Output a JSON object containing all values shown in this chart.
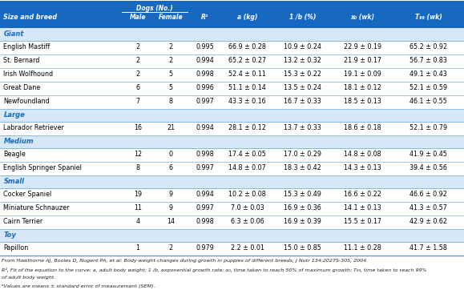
{
  "header_bg": "#1769C0",
  "category_bg": "#D6E8F7",
  "white_bg": "#FFFFFF",
  "border_color": "#5B9BD5",
  "header_text": "#FFFFFF",
  "category_text": "#1769C0",
  "data_text": "#000000",
  "footnote_text": "#333333",
  "col_labels_row1": [
    "",
    "Dogs (No.)",
    "",
    "",
    "",
    "",
    "",
    ""
  ],
  "col_labels_row2": [
    "Size and breed",
    "Male",
    "Female",
    "R²",
    "a (kg)",
    "1 /b (%)",
    "x₀ (wk)",
    "T₉₉ (wk)"
  ],
  "rows": [
    {
      "type": "category",
      "name": "Giant"
    },
    {
      "type": "data",
      "name": "English Mastiff",
      "male": "2",
      "female": "2",
      "r2": "0.995",
      "a": "66.9 ± 0.28",
      "lb": "10.9 ± 0.24",
      "x0": "22.9 ± 0.19",
      "t99": "65.2 ± 0.92"
    },
    {
      "type": "data",
      "name": "St. Bernard",
      "male": "2",
      "female": "2",
      "r2": "0.994",
      "a": "65.2 ± 0.27",
      "lb": "13.2 ± 0.32",
      "x0": "21.9 ± 0.17",
      "t99": "56.7 ± 0.83"
    },
    {
      "type": "data",
      "name": "Irish Wolfhound",
      "male": "2",
      "female": "5",
      "r2": "0.998",
      "a": "52.4 ± 0.11",
      "lb": "15.3 ± 0.22",
      "x0": "19.1 ± 0.09",
      "t99": "49.1 ± 0.43"
    },
    {
      "type": "data",
      "name": "Great Dane",
      "male": "6",
      "female": "5",
      "r2": "0.996",
      "a": "51.1 ± 0.14",
      "lb": "13.5 ± 0.24",
      "x0": "18.1 ± 0.12",
      "t99": "52.1 ± 0.59"
    },
    {
      "type": "data",
      "name": "Newfoundland",
      "male": "7",
      "female": "8",
      "r2": "0.997",
      "a": "43.3 ± 0.16",
      "lb": "16.7 ± 0.33",
      "x0": "18.5 ± 0.13",
      "t99": "46.1 ± 0.55"
    },
    {
      "type": "category",
      "name": "Large"
    },
    {
      "type": "data",
      "name": "Labrador Retriever",
      "male": "16",
      "female": "21",
      "r2": "0.994",
      "a": "28.1 ± 0.12",
      "lb": "13.7 ± 0.33",
      "x0": "18.6 ± 0.18",
      "t99": "52.1 ± 0.79"
    },
    {
      "type": "category",
      "name": "Medium"
    },
    {
      "type": "data",
      "name": "Beagle",
      "male": "12",
      "female": "0",
      "r2": "0.998",
      "a": "17.4 ± 0.05",
      "lb": "17.0 ± 0.29",
      "x0": "14.8 ± 0.08",
      "t99": "41.9 ± 0.45"
    },
    {
      "type": "data",
      "name": "English Springer Spaniel",
      "male": "8",
      "female": "6",
      "r2": "0.997",
      "a": "14.8 ± 0.07",
      "lb": "18.3 ± 0.42",
      "x0": "14.3 ± 0.13",
      "t99": "39.4 ± 0.56"
    },
    {
      "type": "category",
      "name": "Small"
    },
    {
      "type": "data",
      "name": "Cocker Spaniel",
      "male": "19",
      "female": "9",
      "r2": "0.994",
      "a": "10.2 ± 0.08",
      "lb": "15.3 ± 0.49",
      "x0": "16.6 ± 0.22",
      "t99": "46.6 ± 0.92"
    },
    {
      "type": "data",
      "name": "Miniature Schnauzer",
      "male": "11",
      "female": "9",
      "r2": "0.997",
      "a": "7.0 ± 0.03",
      "lb": "16.9 ± 0.36",
      "x0": "14.1 ± 0.13",
      "t99": "41.3 ± 0.57"
    },
    {
      "type": "data",
      "name": "Cairn Terrier",
      "male": "4",
      "female": "14",
      "r2": "0.998",
      "a": "6.3 ± 0.06",
      "lb": "16.9 ± 0.39",
      "x0": "15.5 ± 0.17",
      "t99": "42.9 ± 0.62"
    },
    {
      "type": "category",
      "name": "Toy"
    },
    {
      "type": "data",
      "name": "Papillon",
      "male": "1",
      "female": "2",
      "r2": "0.979",
      "a": "2.2 ± 0.01",
      "lb": "15.0 ± 0.85",
      "x0": "11.1 ± 0.28",
      "t99": "41.7 ± 1.58"
    }
  ],
  "footnotes": [
    "From Hawthorne AJ, Booles D, Nugent PA, et al: Body-weight changes during growth in puppies of different breeds, J Nutr 134:2027S-30S, 2004.",
    "R², Fit of the equation to the curve; a, adult body weight; 1 /b, exponential growth rate; x₀, time taken to reach 50% of maximum growth; T₉₉, time taken to reach 99%",
    "of adult body weight.",
    "ᵃValues are means ± standard error of measurement (SEM)."
  ]
}
